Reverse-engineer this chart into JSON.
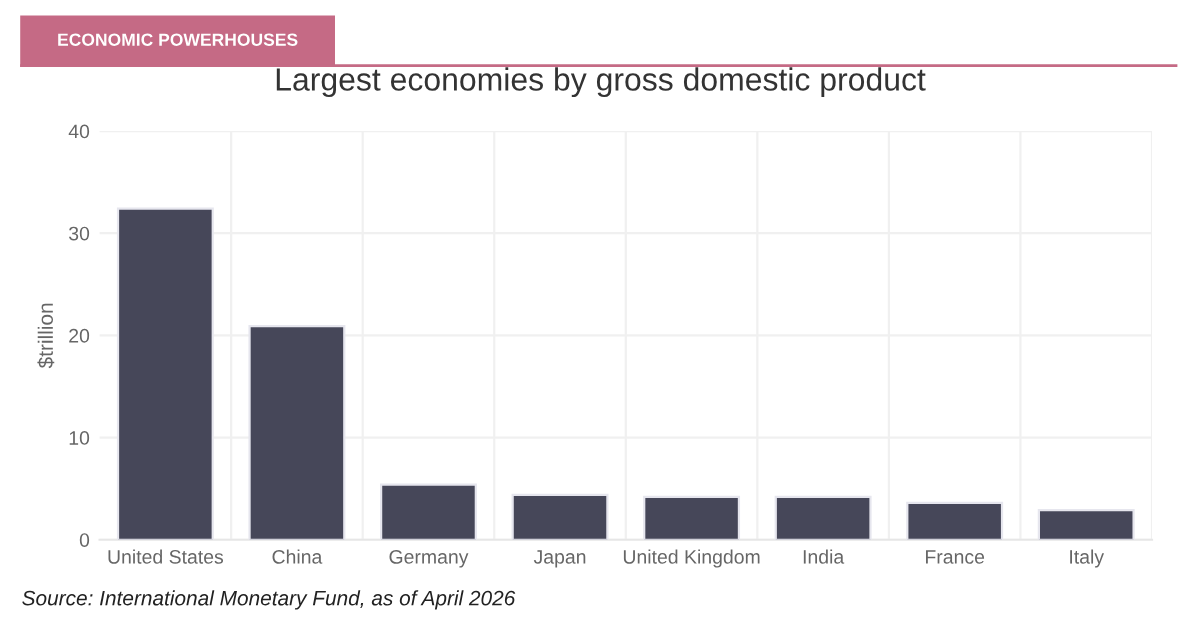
{
  "chart_data": {
    "type": "bar",
    "title": "Largest economies by gross domestic product",
    "ylabel": "$trillion",
    "categories": [
      "United States",
      "China",
      "Germany",
      "Japan",
      "United Kingdom",
      "India",
      "France",
      "Italy"
    ],
    "values": [
      32.4,
      20.9,
      5.4,
      4.4,
      4.2,
      4.2,
      3.6,
      2.9
    ],
    "color": "#464759",
    "ylim": [
      0,
      40
    ],
    "yticks": [
      0,
      10,
      20,
      30,
      40
    ],
    "grid": true,
    "annotations": [
      "ECONOMIC POWERHOUSES",
      "Source: International Monetary Fund, as of April 2026"
    ]
  }
}
